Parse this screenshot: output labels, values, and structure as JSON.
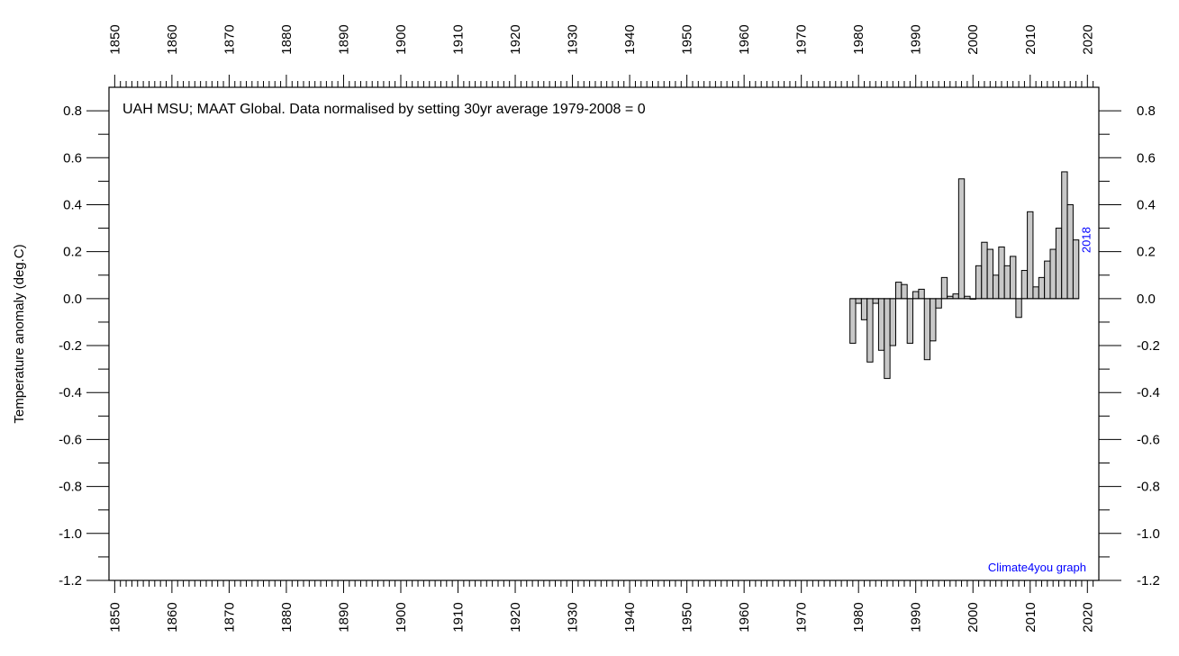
{
  "chart_data": {
    "type": "bar",
    "title": "UAH MSU; MAAT Global. Data normalised by setting 30yr average 1979-2008 = 0",
    "ylabel": "Temperature anomaly (deg.C)",
    "xlabel": "",
    "credit": "Climate4you graph",
    "last_year_label": "2018",
    "xlim": [
      1849,
      2022
    ],
    "ylim": [
      -1.2,
      0.9
    ],
    "x_ticks": [
      1850,
      1860,
      1870,
      1880,
      1890,
      1900,
      1910,
      1920,
      1930,
      1940,
      1950,
      1960,
      1970,
      1980,
      1990,
      2000,
      2010,
      2020
    ],
    "y_ticks": [
      0.8,
      0.6,
      0.4,
      0.2,
      0.0,
      -0.2,
      -0.4,
      -0.6,
      -0.8,
      -1.0,
      -1.2
    ],
    "y_tick_labels": [
      "0.8",
      "0.6",
      "0.4",
      "0.2",
      "0.0",
      "-0.2",
      "-0.4",
      "-0.6",
      "-0.8",
      "-1.0",
      "-1.2"
    ],
    "x": [
      1979,
      1980,
      1981,
      1982,
      1983,
      1984,
      1985,
      1986,
      1987,
      1988,
      1989,
      1990,
      1991,
      1992,
      1993,
      1994,
      1995,
      1996,
      1997,
      1998,
      1999,
      2000,
      2001,
      2002,
      2003,
      2004,
      2005,
      2006,
      2007,
      2008,
      2009,
      2010,
      2011,
      2012,
      2013,
      2014,
      2015,
      2016,
      2017,
      2018
    ],
    "values": [
      -0.19,
      -0.02,
      -0.09,
      -0.27,
      -0.02,
      -0.22,
      -0.34,
      -0.2,
      0.07,
      0.06,
      -0.19,
      0.03,
      0.04,
      -0.26,
      -0.18,
      -0.04,
      0.09,
      0.01,
      0.02,
      0.51,
      0.01,
      0.0,
      0.14,
      0.24,
      0.21,
      0.1,
      0.22,
      0.14,
      0.18,
      -0.08,
      0.12,
      0.37,
      0.05,
      0.09,
      0.16,
      0.21,
      0.3,
      0.54,
      0.4,
      0.25
    ],
    "bar_fill": "#c8c8c8",
    "bar_stroke": "#000000",
    "grid": false,
    "annotation_color": "#0000ff"
  }
}
